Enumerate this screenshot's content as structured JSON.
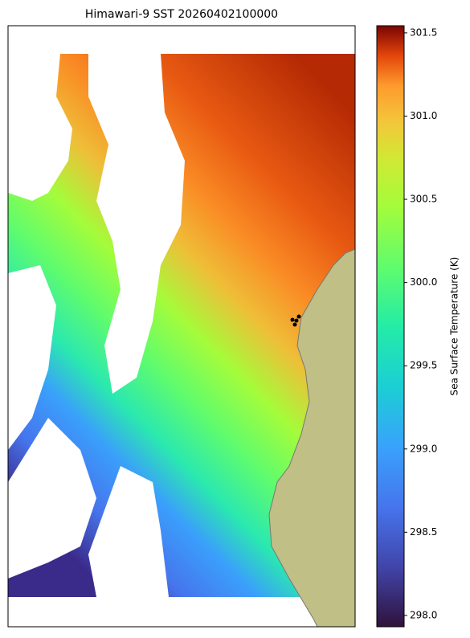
{
  "title": "Himawari-9 SST 20260402100000",
  "colorbar": {
    "label": "Sea Surface Temperature (K)",
    "lim": [
      297.932,
      301.543
    ],
    "ticks": [
      {
        "value": 298,
        "label": "298.0"
      },
      298.5,
      {
        "value": 299,
        "label": "299.0"
      },
      299.5,
      {
        "value": 300,
        "label": "300.0"
      },
      300.5,
      {
        "value": 301,
        "label": "301.0"
      },
      301.5
    ]
  }
}
